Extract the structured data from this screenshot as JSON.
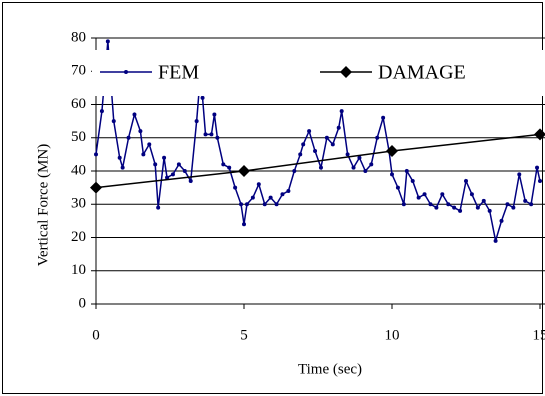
{
  "chart_data": {
    "type": "line",
    "x_label": "Time (sec)",
    "y_label": "Vertical Force (MN)",
    "xlim": [
      0,
      15
    ],
    "xticks": [
      0,
      5,
      10,
      15
    ],
    "ylim": [
      0,
      80
    ],
    "yticks": [
      0,
      10,
      20,
      30,
      40,
      50,
      60,
      70,
      80
    ],
    "grid": true,
    "series": [
      {
        "name": "FEM",
        "color": "#000080",
        "marker": "dot",
        "x": [
          0,
          0.2,
          0.4,
          0.6,
          0.8,
          0.9,
          1.1,
          1.3,
          1.5,
          1.6,
          1.8,
          2.0,
          2.1,
          2.3,
          2.4,
          2.6,
          2.8,
          3.0,
          3.2,
          3.4,
          3.5,
          3.6,
          3.7,
          3.9,
          4.0,
          4.1,
          4.3,
          4.5,
          4.7,
          4.9,
          5.0,
          5.1,
          5.3,
          5.5,
          5.7,
          5.9,
          6.1,
          6.3,
          6.5,
          6.7,
          6.9,
          7.0,
          7.2,
          7.4,
          7.6,
          7.8,
          8.0,
          8.2,
          8.3,
          8.5,
          8.7,
          8.9,
          9.1,
          9.3,
          9.5,
          9.7,
          9.9,
          10.0,
          10.2,
          10.4,
          10.5,
          10.7,
          10.9,
          11.1,
          11.3,
          11.5,
          11.7,
          11.9,
          12.1,
          12.3,
          12.5,
          12.7,
          12.9,
          13.1,
          13.3,
          13.5,
          13.7,
          13.9,
          14.1,
          14.3,
          14.5,
          14.7,
          14.9,
          15.0
        ],
        "values": [
          45,
          58,
          79,
          55,
          44,
          41,
          50,
          57,
          52,
          45,
          48,
          42,
          29,
          44,
          38,
          39,
          42,
          40,
          37,
          55,
          66,
          62,
          51,
          51,
          57,
          50,
          42,
          41,
          35,
          30,
          24,
          30,
          32,
          36,
          30,
          32,
          30,
          33,
          34,
          40,
          45,
          48,
          52,
          46,
          41,
          50,
          48,
          53,
          58,
          45,
          41,
          44,
          40,
          42,
          50,
          56,
          46,
          39,
          35,
          30,
          40,
          37,
          32,
          33,
          30,
          29,
          33,
          30,
          29,
          28,
          37,
          33,
          29,
          31,
          28,
          19,
          25,
          30,
          29,
          39,
          31,
          30,
          41,
          37
        ]
      },
      {
        "name": "DAMAGE",
        "color": "#000000",
        "marker": "diamond",
        "x": [
          0,
          5,
          10,
          15
        ],
        "values": [
          35,
          40,
          46,
          51
        ]
      }
    ]
  }
}
